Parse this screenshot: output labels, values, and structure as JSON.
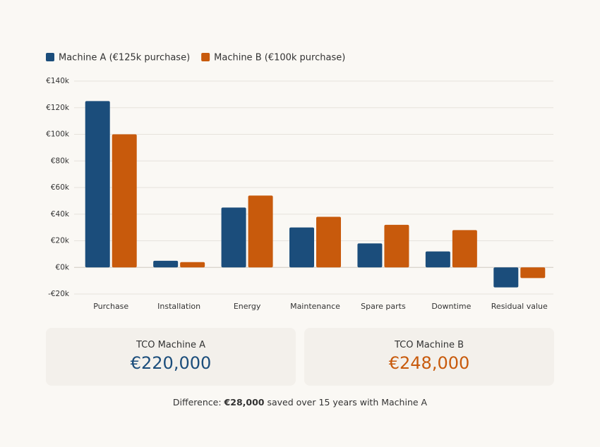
{
  "chart_data": {
    "type": "bar",
    "categories": [
      "Purchase",
      "Installation",
      "Energy",
      "Maintenance",
      "Spare parts",
      "Downtime",
      "Residual value"
    ],
    "series": [
      {
        "name": "Machine A (€125k purchase)",
        "color": "#1b4d7b",
        "values": [
          125000,
          5000,
          45000,
          30000,
          18000,
          12000,
          -15000
        ]
      },
      {
        "name": "Machine B (€100k purchase)",
        "color": "#c85a0c",
        "values": [
          100000,
          4000,
          54000,
          38000,
          32000,
          28000,
          -8000
        ]
      }
    ],
    "ylim": [
      -20000,
      140000
    ],
    "yticks": [
      {
        "value": -20000,
        "label": "-€20k"
      },
      {
        "value": 0,
        "label": "€0k"
      },
      {
        "value": 20000,
        "label": "€20k"
      },
      {
        "value": 40000,
        "label": "€40k"
      },
      {
        "value": 60000,
        "label": "€60k"
      },
      {
        "value": 80000,
        "label": "€80k"
      },
      {
        "value": 100000,
        "label": "€100k"
      },
      {
        "value": 120000,
        "label": "€120k"
      },
      {
        "value": 140000,
        "label": "€140k"
      }
    ],
    "grid": true,
    "legend": "top-left"
  },
  "summary": {
    "cards": [
      {
        "label": "TCO Machine A",
        "value": "€220,000"
      },
      {
        "label": "TCO Machine B",
        "value": "€248,000"
      }
    ],
    "difference": {
      "prefix": "Difference:",
      "amount": "€28,000",
      "suffix": "saved over 15 years with Machine A"
    }
  }
}
